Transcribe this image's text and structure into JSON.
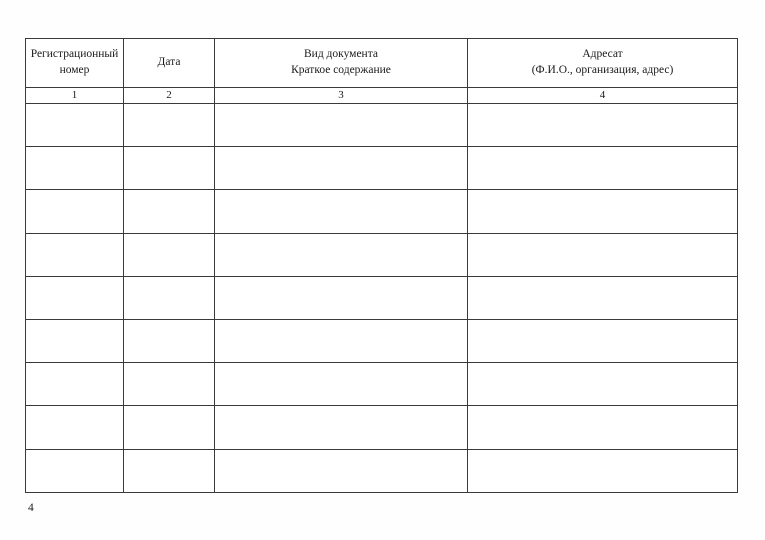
{
  "page": {
    "page_number": "4"
  },
  "table": {
    "columns": [
      {
        "header": "Регистрационный\nномер",
        "number": "1"
      },
      {
        "header": "Дата",
        "number": "2"
      },
      {
        "header": "Вид документа\nКраткое содержание",
        "number": "3"
      },
      {
        "header": "Адресат\n(Ф.И.О., организация, адрес)",
        "number": "4"
      }
    ],
    "empty_row_count": 9,
    "border_color": "#3a3a3a",
    "background_color": "#ffffff"
  }
}
